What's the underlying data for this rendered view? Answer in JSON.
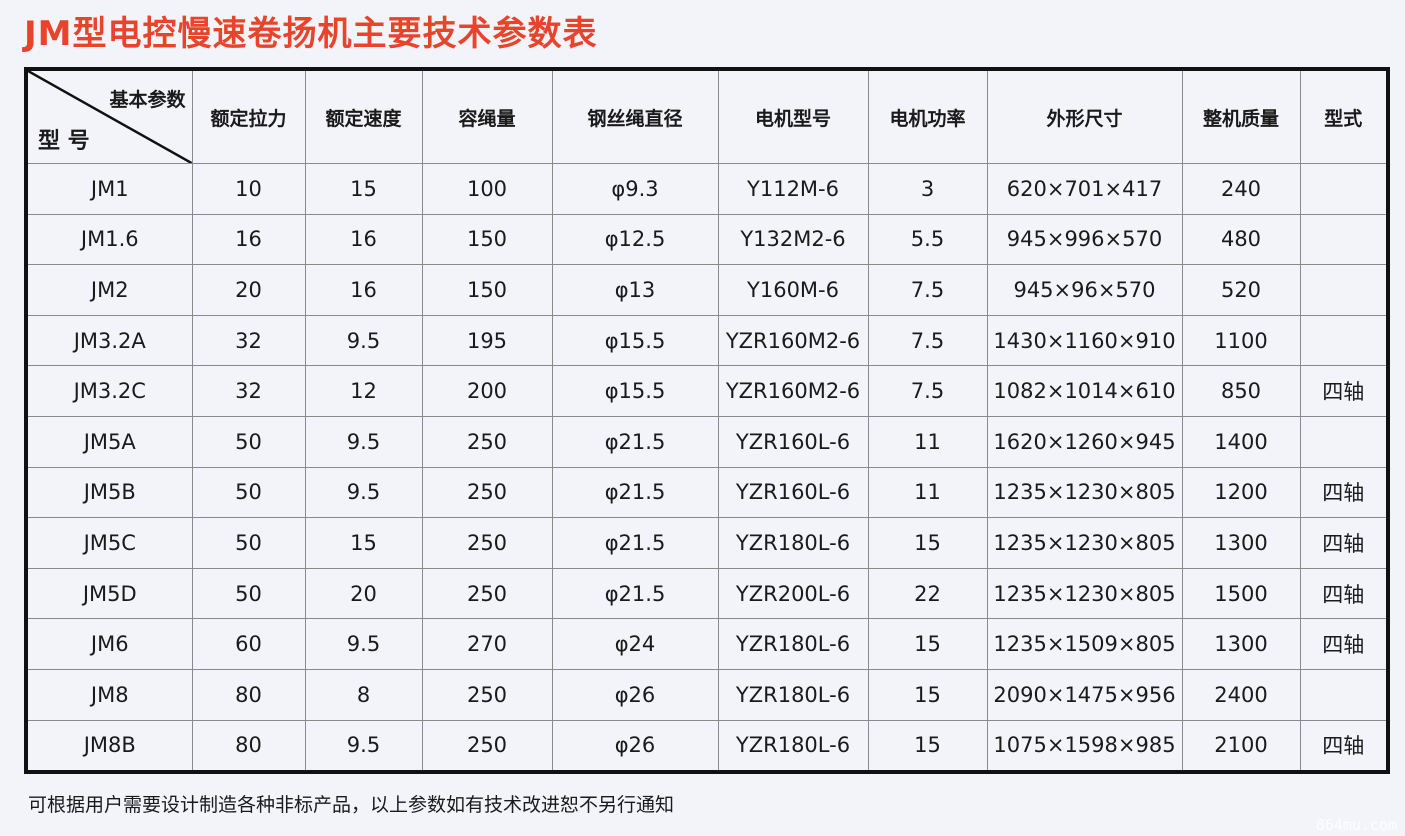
{
  "title": "JM型电控慢速卷扬机主要技术参数表",
  "header": {
    "corner_top": "基本参数",
    "corner_bottom": "型 号",
    "columns": [
      "额定拉力",
      "额定速度",
      "容绳量",
      "钢丝绳直径",
      "电机型号",
      "电机功率",
      "外形尺寸",
      "整机质量",
      "型式"
    ]
  },
  "rows": [
    [
      "JM1",
      "10",
      "15",
      "100",
      "φ9.3",
      "Y112M-6",
      "3",
      "620×701×417",
      "240",
      ""
    ],
    [
      "JM1.6",
      "16",
      "16",
      "150",
      "φ12.5",
      "Y132M2-6",
      "5.5",
      "945×996×570",
      "480",
      ""
    ],
    [
      "JM2",
      "20",
      "16",
      "150",
      "φ13",
      "Y160M-6",
      "7.5",
      "945×96×570",
      "520",
      ""
    ],
    [
      "JM3.2A",
      "32",
      "9.5",
      "195",
      "φ15.5",
      "YZR160M2-6",
      "7.5",
      "1430×1160×910",
      "1100",
      ""
    ],
    [
      "JM3.2C",
      "32",
      "12",
      "200",
      "φ15.5",
      "YZR160M2-6",
      "7.5",
      "1082×1014×610",
      "850",
      "四轴"
    ],
    [
      "JM5A",
      "50",
      "9.5",
      "250",
      "φ21.5",
      "YZR160L-6",
      "11",
      "1620×1260×945",
      "1400",
      ""
    ],
    [
      "JM5B",
      "50",
      "9.5",
      "250",
      "φ21.5",
      "YZR160L-6",
      "11",
      "1235×1230×805",
      "1200",
      "四轴"
    ],
    [
      "JM5C",
      "50",
      "15",
      "250",
      "φ21.5",
      "YZR180L-6",
      "15",
      "1235×1230×805",
      "1300",
      "四轴"
    ],
    [
      "JM5D",
      "50",
      "20",
      "250",
      "φ21.5",
      "YZR200L-6",
      "22",
      "1235×1230×805",
      "1500",
      "四轴"
    ],
    [
      "JM6",
      "60",
      "9.5",
      "270",
      "φ24",
      "YZR180L-6",
      "15",
      "1235×1509×805",
      "1300",
      "四轴"
    ],
    [
      "JM8",
      "80",
      "8",
      "250",
      "φ26",
      "YZR180L-6",
      "15",
      "2090×1475×956",
      "2400",
      ""
    ],
    [
      "JM8B",
      "80",
      "9.5",
      "250",
      "φ26",
      "YZR180L-6",
      "15",
      "1075×1598×985",
      "2100",
      "四轴"
    ]
  ],
  "footnote": "可根据用户需要设计制造各种非标产品，以上参数如有技术改进恕不另行通知",
  "watermark": "864mu.com",
  "colors": {
    "title": "#e8432b",
    "background": "#f3f4fa"
  }
}
